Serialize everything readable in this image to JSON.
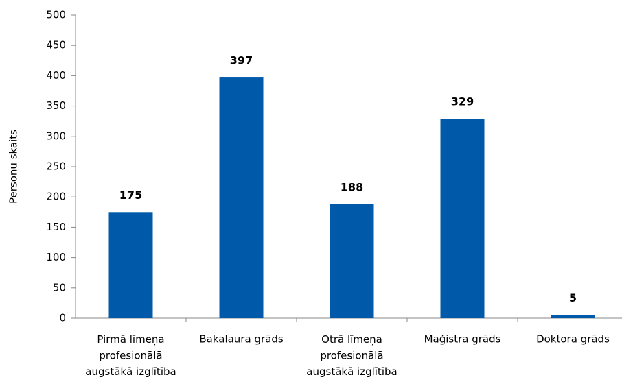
{
  "chart_data": {
    "type": "bar",
    "y_label": "Personu skaits",
    "categories": [
      "Pirmā līmeņa\nprofesionālā\naugstākā izglītība",
      "Bakalaura grāds",
      "Otrā līmeņa\nprofesionālā\naugstākā izglītība",
      "Maģistra grāds",
      "Doktora grāds"
    ],
    "values": [
      175,
      397,
      188,
      329,
      5
    ],
    "color": "#0059a9",
    "ylim": [
      0,
      500
    ],
    "yticks": [
      0,
      50,
      100,
      150,
      200,
      250,
      300,
      350,
      400,
      450,
      500
    ],
    "grid": false
  }
}
